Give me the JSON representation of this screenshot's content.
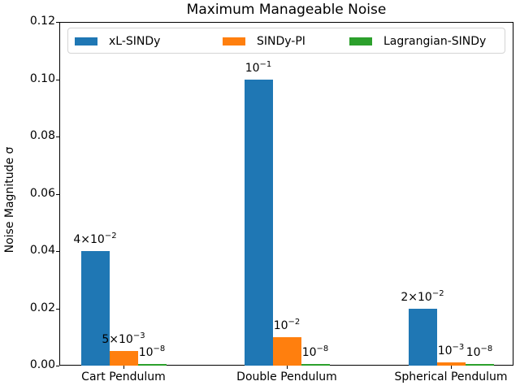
{
  "chart_data": {
    "type": "bar",
    "title": "Maximum Manageable Noise",
    "xlabel": "",
    "ylabel": "Noise Magnitude σ",
    "ylim": [
      0,
      0.12
    ],
    "yticks": [
      "0.00",
      "0.02",
      "0.04",
      "0.06",
      "0.08",
      "0.10",
      "0.12"
    ],
    "categories": [
      "Cart Pendulum",
      "Double Pendulum",
      "Spherical Pendulum"
    ],
    "series": [
      {
        "name": "xL-SINDy",
        "color": "#1f77b4",
        "values": [
          0.04,
          0.1,
          0.02
        ],
        "labels": [
          {
            "base": "4×10",
            "exp": "−2"
          },
          {
            "base": "10",
            "exp": "−1"
          },
          {
            "base": "2×10",
            "exp": "−2"
          }
        ]
      },
      {
        "name": "SINDy-PI",
        "color": "#ff7f0e",
        "values": [
          0.005,
          0.01,
          0.001
        ],
        "labels": [
          {
            "base": "5×10",
            "exp": "−3"
          },
          {
            "base": "10",
            "exp": "−2"
          },
          {
            "base": "10",
            "exp": "−3"
          }
        ]
      },
      {
        "name": "Lagrangian-SINDy",
        "color": "#2ca02c",
        "values": [
          1e-08,
          1e-08,
          1e-08
        ],
        "labels": [
          {
            "base": "10",
            "exp": "−8"
          },
          {
            "base": "10",
            "exp": "−8"
          },
          {
            "base": "10",
            "exp": "−8"
          }
        ]
      }
    ],
    "legend_position": "upper center",
    "grid": false
  }
}
